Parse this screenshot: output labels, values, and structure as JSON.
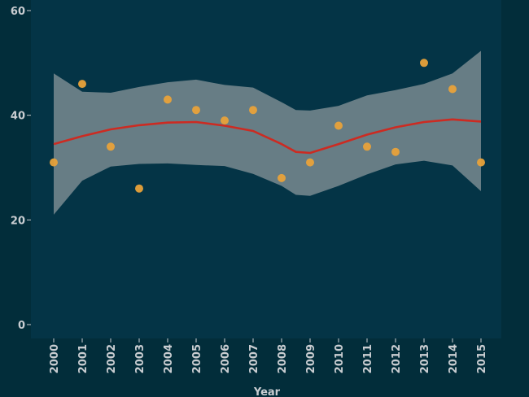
{
  "chart_data": {
    "type": "scatter",
    "title": "",
    "xlabel": "Year",
    "ylabel": "",
    "x": [
      2000,
      2001,
      2002,
      2003,
      2004,
      2005,
      2006,
      2007,
      2008,
      2009,
      2010,
      2011,
      2012,
      2013,
      2014,
      2015
    ],
    "x_tick_labels": [
      "2000",
      "2001",
      "2002",
      "2003",
      "2004",
      "2005",
      "2006",
      "2007",
      "2008",
      "2009",
      "2010",
      "2011",
      "2012",
      "2013",
      "2014",
      "2015"
    ],
    "y": [
      31,
      46,
      34,
      26,
      43,
      41,
      39,
      41,
      28,
      31,
      38,
      34,
      33,
      50,
      45,
      31
    ],
    "y_ticks": [
      0,
      20,
      40,
      60
    ],
    "y_tick_labels": [
      "0",
      "20",
      "40",
      "60"
    ],
    "ylim": [
      -2.5,
      62
    ],
    "smooth": {
      "x": [
        2000,
        2001,
        2002,
        2003,
        2004,
        2005,
        2006,
        2007,
        2008,
        2008.5,
        2009,
        2010,
        2011,
        2012,
        2013,
        2014,
        2015
      ],
      "fit": [
        34.5,
        36.0,
        37.3,
        38.1,
        38.6,
        38.7,
        38.0,
        37.0,
        34.5,
        33.0,
        32.8,
        34.5,
        36.3,
        37.7,
        38.7,
        39.2,
        38.8
      ],
      "upper": [
        48.0,
        44.5,
        44.3,
        45.4,
        46.3,
        46.8,
        45.8,
        45.3,
        42.5,
        41.0,
        40.9,
        41.8,
        43.8,
        44.8,
        46.0,
        48.0,
        52.3
      ],
      "lower": [
        21.0,
        27.5,
        30.2,
        30.7,
        30.8,
        30.5,
        30.3,
        28.8,
        26.5,
        24.8,
        24.6,
        26.5,
        28.7,
        30.6,
        31.3,
        30.4,
        25.5
      ]
    },
    "grid": false,
    "legend": "none",
    "colors": {
      "page_background": "#022d3a",
      "panel_background": "#043446",
      "points": "#e8a23a",
      "fit_line": "#cc2b22",
      "ribbon": "#b9b9b9",
      "text": "#c9cdd1"
    }
  }
}
